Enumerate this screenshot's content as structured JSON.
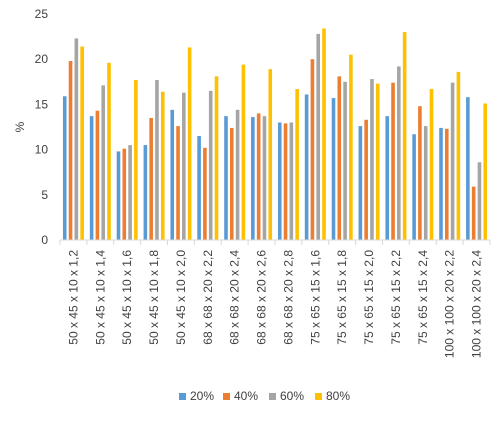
{
  "chart_data": {
    "type": "bar",
    "title": "",
    "xlabel": "",
    "ylabel": "%",
    "ylim": [
      0,
      25
    ],
    "yticks": [
      0,
      5,
      10,
      15,
      20,
      25
    ],
    "grid": false,
    "legend_position": "bottom",
    "categories": [
      "50 x 45 x 10 x 1,2",
      "50 x 45 x 10 x 1,4",
      "50 x 45 x 10 x 1,6",
      "50 x 45 x 10 x 1,8",
      "50 x 45 x 10 x 2,0",
      "68 x 68 x 20 x 2,2",
      "68 x 68 x 20 x 2,4",
      "68 x 68 x 20 x 2,6",
      "68 x 68 x 20 x 2,8",
      "75 x 65 x 15 x 1,6",
      "75 x 65 x 15 x 1,8",
      "75 x 65 x 15 x 2,0",
      "75 x 65 x 15 x 2,2",
      "75 x 65 x 15 x 2,4",
      "100 x 100 x 20 x 2,2",
      "100 x 100 x 20 x 2,4"
    ],
    "series": [
      {
        "name": "20%",
        "color": "#5B9BD5",
        "values": [
          15.9,
          13.7,
          9.8,
          10.5,
          14.4,
          11.5,
          13.7,
          13.6,
          13.0,
          16.1,
          15.7,
          12.6,
          13.7,
          11.7,
          12.4,
          15.8
        ]
      },
      {
        "name": "40%",
        "color": "#ED7D31",
        "values": [
          19.8,
          14.3,
          10.1,
          13.5,
          12.6,
          10.2,
          12.4,
          14.0,
          12.9,
          20.0,
          18.1,
          13.3,
          17.4,
          14.8,
          12.3,
          5.9
        ]
      },
      {
        "name": "60%",
        "color": "#A5A5A5",
        "values": [
          22.3,
          17.1,
          10.5,
          17.7,
          16.3,
          16.5,
          14.4,
          13.7,
          13.0,
          22.8,
          17.5,
          17.8,
          19.2,
          12.6,
          17.4,
          8.6
        ]
      },
      {
        "name": "80%",
        "color": "#FFC000",
        "values": [
          21.4,
          19.6,
          17.7,
          16.4,
          21.3,
          18.1,
          19.4,
          18.9,
          16.7,
          23.4,
          20.5,
          17.3,
          23.0,
          16.7,
          18.6,
          15.1
        ]
      }
    ]
  }
}
